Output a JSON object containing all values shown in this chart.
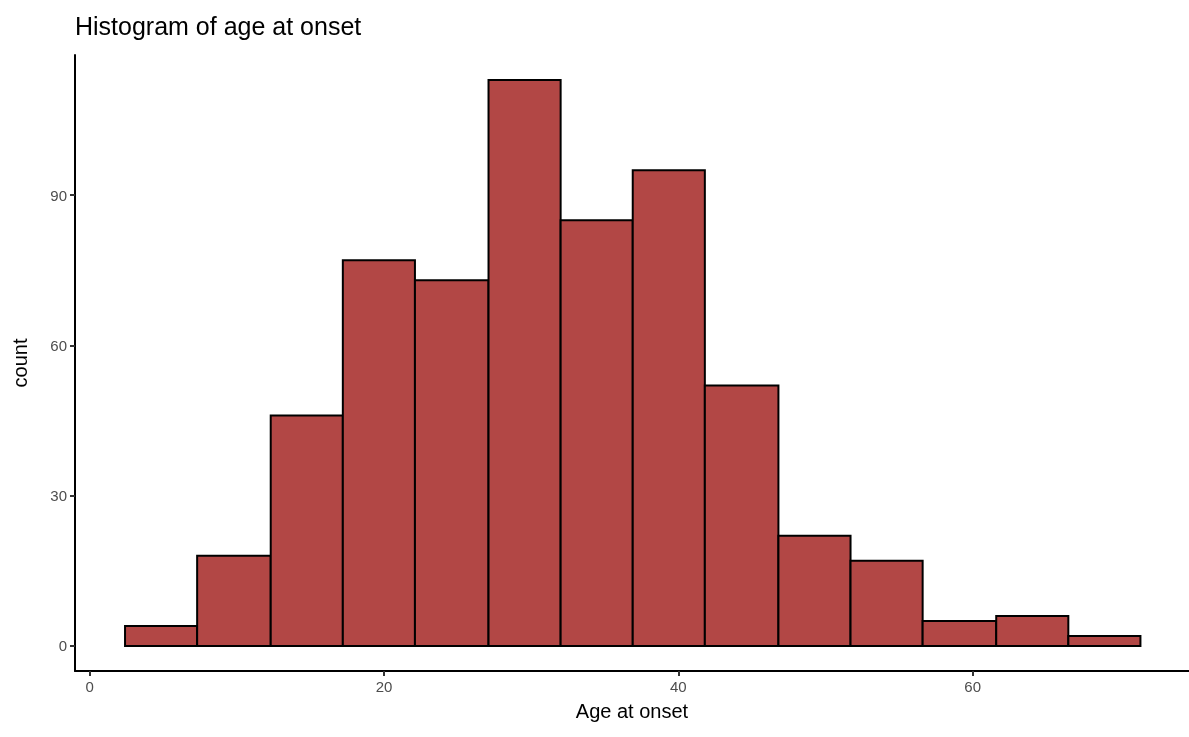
{
  "chart_data": {
    "type": "histogram",
    "title": "Histogram of age at onset",
    "xlabel": "Age at onset",
    "ylabel": "count",
    "bins": [
      2.4,
      7.3,
      12.3,
      17.2,
      22.1,
      27.1,
      32.0,
      36.9,
      41.8,
      46.8,
      51.7,
      56.6,
      61.6,
      66.5,
      71.4
    ],
    "values": [
      4,
      18,
      46,
      77,
      73,
      113,
      85,
      95,
      52,
      22,
      17,
      5,
      6,
      2
    ],
    "color": "#b24745",
    "xlim": [
      -1,
      74.7
    ],
    "xticks": [
      0,
      20,
      40,
      60
    ],
    "ylim": [
      -5,
      118
    ],
    "yticks": [
      0,
      30,
      60,
      90
    ],
    "grid": false
  }
}
